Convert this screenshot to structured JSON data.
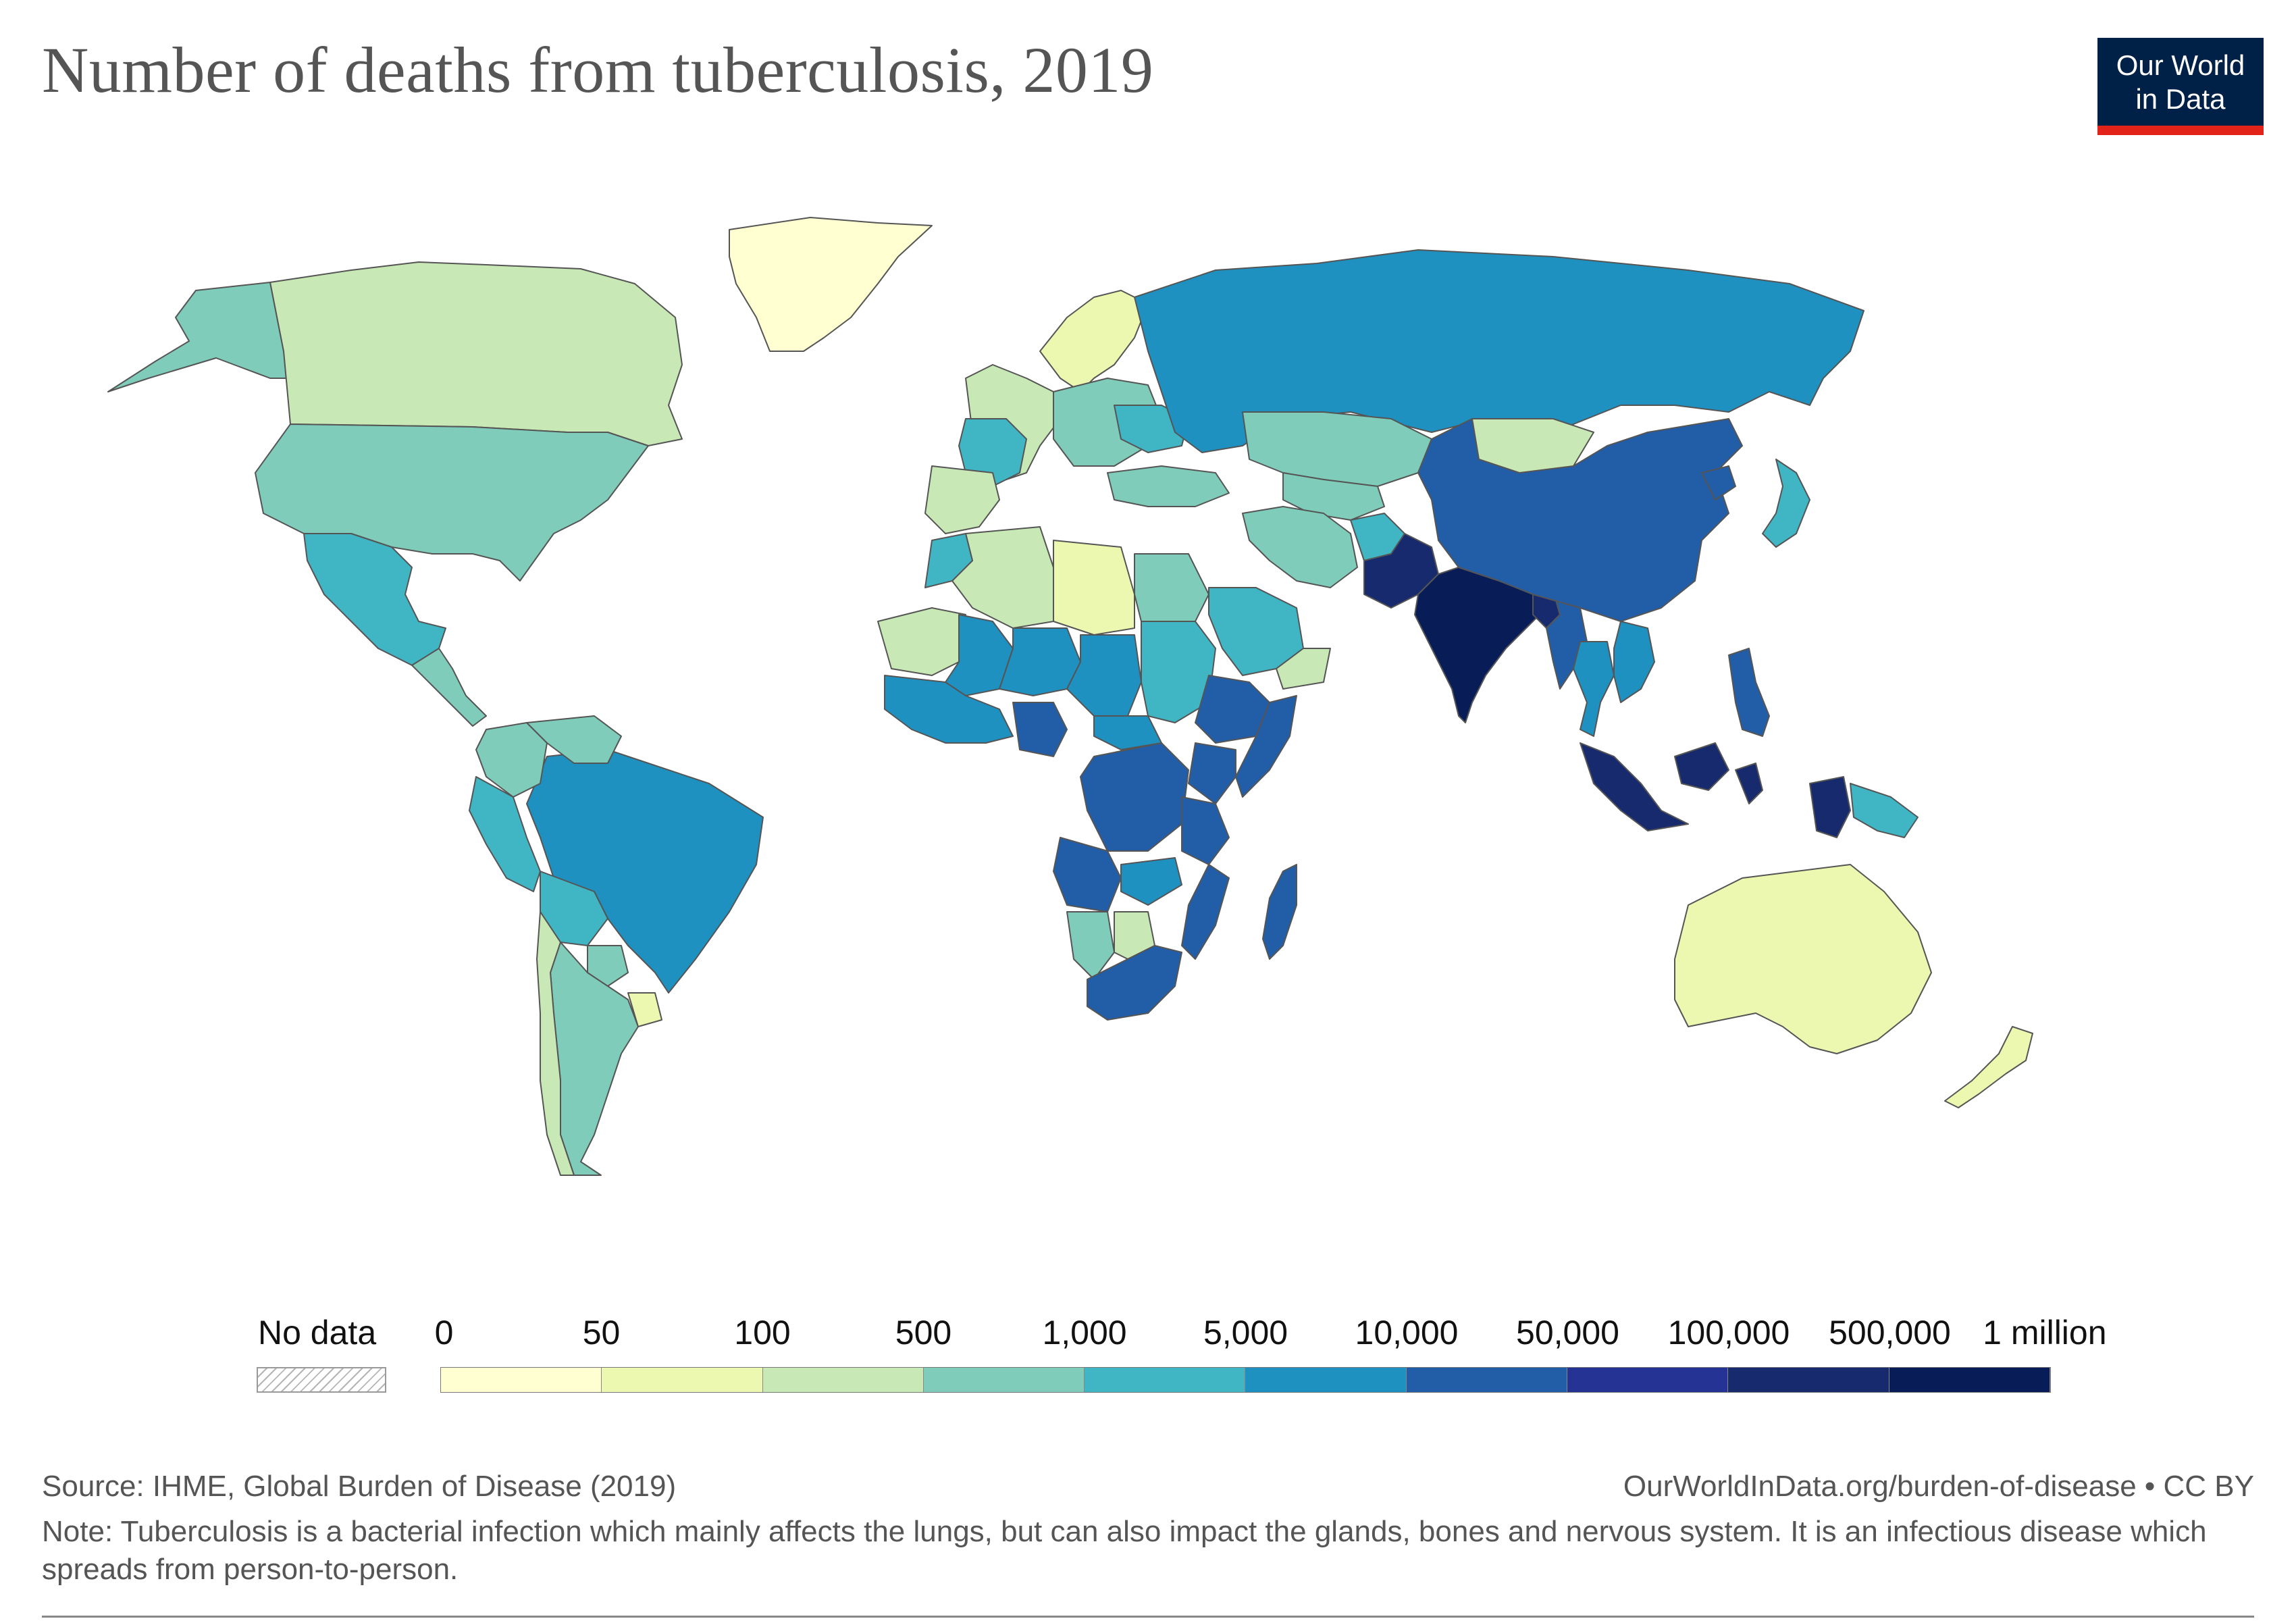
{
  "title": "Number of deaths from tuberculosis, 2019",
  "logo": {
    "line1": "Our World",
    "line2": "in Data",
    "bg_color": "#002147",
    "accent_color": "#e2231a"
  },
  "legend": {
    "no_data_label": "No data",
    "tick_labels": [
      "0",
      "50",
      "100",
      "500",
      "1,000",
      "5,000",
      "10,000",
      "50,000",
      "100,000",
      "500,000",
      "1 million"
    ],
    "bin_colors": [
      "#ffffd1",
      "#ecf8b0",
      "#c8e9b5",
      "#7fccba",
      "#40b5c4",
      "#1e91c1",
      "#225ea8",
      "#253494",
      "#172a6e",
      "#081d58"
    ]
  },
  "chart_data": {
    "type": "choropleth",
    "title": "Number of deaths from tuberculosis, 2019",
    "scale_breaks": [
      0,
      50,
      100,
      500,
      1000,
      5000,
      10000,
      50000,
      100000,
      500000,
      1000000
    ],
    "regions": [
      {
        "name": "Greenland",
        "bin": 0
      },
      {
        "name": "Alaska",
        "bin": 3
      },
      {
        "name": "Canada",
        "bin": 2
      },
      {
        "name": "United States",
        "bin": 3
      },
      {
        "name": "Mexico",
        "bin": 4
      },
      {
        "name": "Central America",
        "bin": 3
      },
      {
        "name": "Brazil",
        "bin": 5
      },
      {
        "name": "Peru",
        "bin": 4
      },
      {
        "name": "Colombia",
        "bin": 3
      },
      {
        "name": "Venezuela",
        "bin": 3
      },
      {
        "name": "Bolivia",
        "bin": 4
      },
      {
        "name": "Argentina",
        "bin": 3
      },
      {
        "name": "Chile",
        "bin": 2
      },
      {
        "name": "Paraguay",
        "bin": 3
      },
      {
        "name": "Uruguay",
        "bin": 1
      },
      {
        "name": "Western Europe",
        "bin": 2
      },
      {
        "name": "France",
        "bin": 4
      },
      {
        "name": "Spain",
        "bin": 2
      },
      {
        "name": "Iceland and Nordics",
        "bin": 1
      },
      {
        "name": "Eastern Europe",
        "bin": 3
      },
      {
        "name": "Ukraine",
        "bin": 4
      },
      {
        "name": "Russia",
        "bin": 5
      },
      {
        "name": "Kazakhstan",
        "bin": 3
      },
      {
        "name": "Central Asia",
        "bin": 3
      },
      {
        "name": "Turkey",
        "bin": 3
      },
      {
        "name": "Iran",
        "bin": 3
      },
      {
        "name": "Afghanistan",
        "bin": 4
      },
      {
        "name": "Pakistan",
        "bin": 8
      },
      {
        "name": "India",
        "bin": 9
      },
      {
        "name": "Bangladesh",
        "bin": 8
      },
      {
        "name": "Myanmar",
        "bin": 6
      },
      {
        "name": "Thailand",
        "bin": 5
      },
      {
        "name": "Vietnam",
        "bin": 5
      },
      {
        "name": "China",
        "bin": 6
      },
      {
        "name": "Mongolia",
        "bin": 2
      },
      {
        "name": "North Korea",
        "bin": 6
      },
      {
        "name": "Japan",
        "bin": 4
      },
      {
        "name": "Philippines",
        "bin": 6
      },
      {
        "name": "Indonesia",
        "bin": 8
      },
      {
        "name": "Papua New Guinea",
        "bin": 4
      },
      {
        "name": "Australia",
        "bin": 1
      },
      {
        "name": "New Zealand",
        "bin": 1
      },
      {
        "name": "Saudi Arabia",
        "bin": 4
      },
      {
        "name": "Arabian Peninsula",
        "bin": 2
      },
      {
        "name": "Egypt",
        "bin": 3
      },
      {
        "name": "Libya",
        "bin": 1
      },
      {
        "name": "Algeria",
        "bin": 2
      },
      {
        "name": "Morocco",
        "bin": 4
      },
      {
        "name": "West Sahel",
        "bin": 2
      },
      {
        "name": "Mali",
        "bin": 5
      },
      {
        "name": "Niger",
        "bin": 5
      },
      {
        "name": "Chad",
        "bin": 5
      },
      {
        "name": "Sudan",
        "bin": 4
      },
      {
        "name": "Ethiopia",
        "bin": 6
      },
      {
        "name": "Somalia",
        "bin": 6
      },
      {
        "name": "West Africa",
        "bin": 5
      },
      {
        "name": "Nigeria",
        "bin": 6
      },
      {
        "name": "Central African Republic",
        "bin": 5
      },
      {
        "name": "DR Congo",
        "bin": 6
      },
      {
        "name": "Kenya",
        "bin": 6
      },
      {
        "name": "Tanzania",
        "bin": 6
      },
      {
        "name": "Angola",
        "bin": 6
      },
      {
        "name": "Zambia",
        "bin": 5
      },
      {
        "name": "Mozambique",
        "bin": 6
      },
      {
        "name": "Namibia",
        "bin": 3
      },
      {
        "name": "Botswana",
        "bin": 2
      },
      {
        "name": "South Africa",
        "bin": 6
      },
      {
        "name": "Madagascar",
        "bin": 6
      }
    ]
  },
  "footer": {
    "source": "Source: IHME, Global Burden of Disease (2019)",
    "url": "OurWorldInData.org/burden-of-disease • CC BY",
    "note": "Note: Tuberculosis is a bacterial infection which mainly affects the lungs, but can also impact the glands, bones and nervous system. It is an infectious disease which spreads from person-to-person."
  }
}
